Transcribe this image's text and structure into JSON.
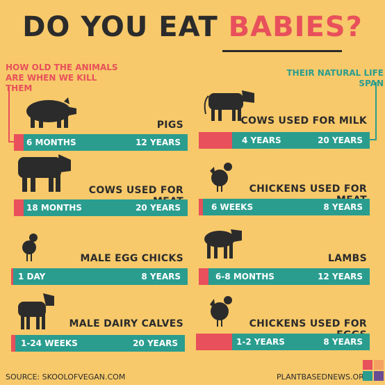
{
  "title": {
    "part1": "DO YOU EAT ",
    "part2": "BABIES?"
  },
  "legend": {
    "left": "HOW OLD THE ANIMALS ARE WHEN WE KILL THEM",
    "right": "THEIR NATURAL LIFE SPAN"
  },
  "rows": [
    {
      "label": "PIGS",
      "age": "6 MONTHS",
      "span": "12 YEARS"
    },
    {
      "label": "COWS USED FOR MILK",
      "age": "4 YEARS",
      "span": "20 YEARS"
    },
    {
      "label": "COWS USED FOR MEAT",
      "age": "18 MONTHS",
      "span": "20 YEARS"
    },
    {
      "label": "CHICKENS USED FOR MEAT",
      "age": "6 WEEKS",
      "span": "8 YEARS"
    },
    {
      "label": "MALE EGG CHICKS",
      "age": "1 DAY",
      "span": "8 YEARS"
    },
    {
      "label": "LAMBS",
      "age": "6-8 MONTHS",
      "span": "12 YEARS"
    },
    {
      "label": "MALE DAIRY CALVES",
      "age": "1-24 WEEKS",
      "span": "20 YEARS"
    },
    {
      "label": "CHICKENS USED FOR EGGS",
      "age": "1-2 YEARS",
      "span": "8 YEARS"
    }
  ],
  "footer": {
    "source": "SOURCE: SKOOLOFVEGAN.COM",
    "site": "PLANTBASEDNEWS.ORG"
  },
  "colors": {
    "background": "#f7c96a",
    "bar": "#2a9d8f",
    "age": "#e8505b",
    "text": "#2b2b2b"
  },
  "icons": [
    "pig-icon",
    "cow-icon",
    "bull-icon",
    "chicken-icon",
    "chick-icon",
    "lamb-icon",
    "calf-icon",
    "hen-icon",
    "logo-icon"
  ]
}
